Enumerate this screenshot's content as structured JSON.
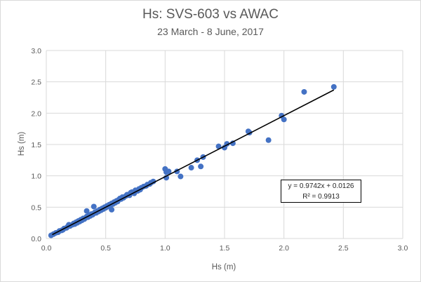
{
  "chart_data": {
    "type": "scatter",
    "title": "Hs: SVS-603 vs AWAC",
    "subtitle": "23 March - 8 June, 2017",
    "xlabel": "Hs (m)",
    "ylabel": "Hs (m)",
    "xlim": [
      0,
      3.0
    ],
    "ylim": [
      0,
      3.0
    ],
    "x_ticks": [
      "0.0",
      "0.5",
      "1.0",
      "1.5",
      "2.0",
      "2.5",
      "3.0"
    ],
    "y_ticks": [
      "0.0",
      "0.5",
      "1.0",
      "1.5",
      "2.0",
      "2.5",
      "3.0"
    ],
    "grid": true,
    "marker_color": "#4472c4",
    "trendline_color": "#000000",
    "trendline": {
      "slope": 0.9742,
      "intercept": 0.0126,
      "x_range": [
        0.05,
        2.42
      ]
    },
    "equation_text": "y = 0.9742x + 0.0126",
    "r2_text": "R² = 0.9913",
    "points": [
      [
        0.04,
        0.05
      ],
      [
        0.06,
        0.07
      ],
      [
        0.08,
        0.09
      ],
      [
        0.1,
        0.1
      ],
      [
        0.11,
        0.12
      ],
      [
        0.13,
        0.13
      ],
      [
        0.14,
        0.14
      ],
      [
        0.15,
        0.16
      ],
      [
        0.17,
        0.17
      ],
      [
        0.18,
        0.19
      ],
      [
        0.19,
        0.22
      ],
      [
        0.2,
        0.2
      ],
      [
        0.22,
        0.22
      ],
      [
        0.23,
        0.24
      ],
      [
        0.24,
        0.23
      ],
      [
        0.25,
        0.26
      ],
      [
        0.26,
        0.25
      ],
      [
        0.27,
        0.28
      ],
      [
        0.28,
        0.27
      ],
      [
        0.29,
        0.3
      ],
      [
        0.3,
        0.29
      ],
      [
        0.31,
        0.32
      ],
      [
        0.32,
        0.31
      ],
      [
        0.33,
        0.33
      ],
      [
        0.34,
        0.44
      ],
      [
        0.34,
        0.35
      ],
      [
        0.35,
        0.34
      ],
      [
        0.36,
        0.37
      ],
      [
        0.37,
        0.36
      ],
      [
        0.38,
        0.39
      ],
      [
        0.39,
        0.38
      ],
      [
        0.4,
        0.4
      ],
      [
        0.4,
        0.51
      ],
      [
        0.41,
        0.42
      ],
      [
        0.42,
        0.41
      ],
      [
        0.43,
        0.44
      ],
      [
        0.44,
        0.43
      ],
      [
        0.45,
        0.46
      ],
      [
        0.46,
        0.45
      ],
      [
        0.47,
        0.48
      ],
      [
        0.48,
        0.47
      ],
      [
        0.49,
        0.5
      ],
      [
        0.5,
        0.49
      ],
      [
        0.51,
        0.52
      ],
      [
        0.52,
        0.51
      ],
      [
        0.53,
        0.54
      ],
      [
        0.54,
        0.53
      ],
      [
        0.55,
        0.56
      ],
      [
        0.55,
        0.46
      ],
      [
        0.56,
        0.55
      ],
      [
        0.57,
        0.58
      ],
      [
        0.58,
        0.57
      ],
      [
        0.59,
        0.6
      ],
      [
        0.6,
        0.59
      ],
      [
        0.61,
        0.62
      ],
      [
        0.62,
        0.64
      ],
      [
        0.63,
        0.63
      ],
      [
        0.64,
        0.66
      ],
      [
        0.65,
        0.65
      ],
      [
        0.67,
        0.68
      ],
      [
        0.68,
        0.7
      ],
      [
        0.7,
        0.69
      ],
      [
        0.71,
        0.73
      ],
      [
        0.72,
        0.74
      ],
      [
        0.74,
        0.72
      ],
      [
        0.75,
        0.77
      ],
      [
        0.77,
        0.76
      ],
      [
        0.78,
        0.79
      ],
      [
        0.79,
        0.78
      ],
      [
        0.8,
        0.81
      ],
      [
        0.82,
        0.83
      ],
      [
        0.84,
        0.84
      ],
      [
        0.85,
        0.86
      ],
      [
        0.87,
        0.87
      ],
      [
        0.88,
        0.89
      ],
      [
        0.9,
        0.91
      ],
      [
        1.0,
        1.11
      ],
      [
        1.01,
        0.97
      ],
      [
        1.01,
        1.06
      ],
      [
        1.03,
        1.07
      ],
      [
        1.1,
        1.07
      ],
      [
        1.13,
        0.99
      ],
      [
        1.22,
        1.13
      ],
      [
        1.27,
        1.25
      ],
      [
        1.3,
        1.15
      ],
      [
        1.32,
        1.3
      ],
      [
        1.45,
        1.47
      ],
      [
        1.5,
        1.45
      ],
      [
        1.52,
        1.51
      ],
      [
        1.57,
        1.52
      ],
      [
        1.7,
        1.71
      ],
      [
        1.71,
        1.69
      ],
      [
        1.87,
        1.57
      ],
      [
        1.98,
        1.96
      ],
      [
        2.0,
        1.9
      ],
      [
        2.17,
        2.34
      ],
      [
        2.42,
        2.42
      ]
    ]
  }
}
